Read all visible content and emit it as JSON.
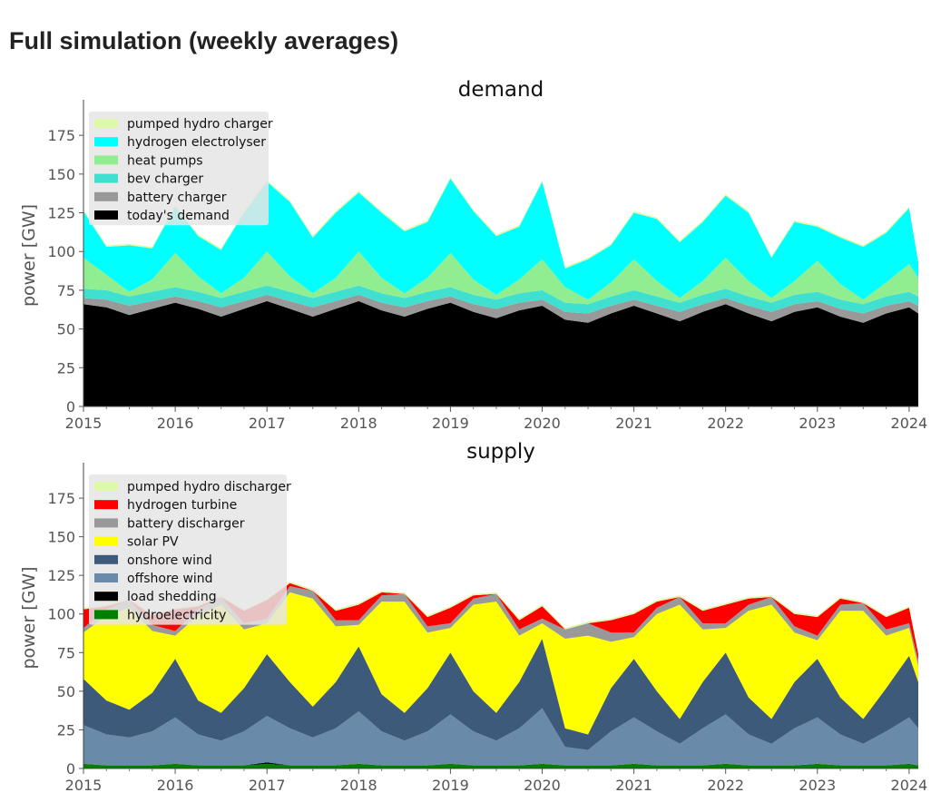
{
  "page": {
    "title": "Full simulation (weekly averages)"
  },
  "chart_data": [
    {
      "id": "demand",
      "type": "area",
      "stacked": true,
      "title": "demand",
      "xlabel": "",
      "ylabel": "power [GW]",
      "xlim": [
        2015.0,
        2024.1
      ],
      "ylim": [
        0,
        195
      ],
      "grid": false,
      "legend_position": "top-left",
      "x_ticks": [
        "2015",
        "2016",
        "2017",
        "2018",
        "2019",
        "2020",
        "2021",
        "2022",
        "2023",
        "2024"
      ],
      "y_ticks": [
        "0",
        "25",
        "50",
        "75",
        "100",
        "125",
        "150",
        "175"
      ],
      "x": [
        2015.0,
        2015.25,
        2015.5,
        2015.75,
        2016.0,
        2016.25,
        2016.5,
        2016.75,
        2017.0,
        2017.25,
        2017.5,
        2017.75,
        2018.0,
        2018.25,
        2018.5,
        2018.75,
        2019.0,
        2019.25,
        2019.5,
        2019.75,
        2020.0,
        2020.25,
        2020.5,
        2020.75,
        2021.0,
        2021.25,
        2021.5,
        2021.75,
        2022.0,
        2022.25,
        2022.5,
        2022.75,
        2023.0,
        2023.25,
        2023.5,
        2023.75,
        2024.0,
        2024.1
      ],
      "series": [
        {
          "name": "today's demand",
          "color": "#000000",
          "values": [
            66,
            64,
            59,
            63,
            67,
            63,
            58,
            63,
            68,
            63,
            58,
            63,
            68,
            62,
            58,
            63,
            67,
            61,
            57,
            62,
            65,
            56,
            54,
            60,
            65,
            60,
            55,
            61,
            66,
            60,
            55,
            61,
            64,
            58,
            54,
            60,
            64,
            60
          ]
        },
        {
          "name": "battery charger",
          "color": "#999999",
          "values": [
            4,
            5,
            6,
            5,
            4,
            5,
            6,
            5,
            4,
            5,
            6,
            5,
            4,
            5,
            6,
            5,
            4,
            5,
            6,
            5,
            4,
            5,
            6,
            5,
            4,
            5,
            6,
            5,
            4,
            5,
            6,
            5,
            4,
            5,
            6,
            5,
            4,
            5
          ]
        },
        {
          "name": "bev charger",
          "color": "#40e0d0",
          "values": [
            6,
            6,
            6,
            6,
            6,
            6,
            6,
            6,
            6,
            6,
            6,
            6,
            6,
            6,
            6,
            6,
            6,
            6,
            6,
            6,
            6,
            6,
            6,
            6,
            6,
            6,
            6,
            6,
            6,
            6,
            6,
            6,
            6,
            6,
            6,
            6,
            6,
            6
          ]
        },
        {
          "name": "heat pumps",
          "color": "#90ee90",
          "values": [
            20,
            10,
            3,
            8,
            22,
            10,
            3,
            9,
            22,
            10,
            3,
            9,
            22,
            10,
            3,
            9,
            22,
            10,
            3,
            9,
            20,
            10,
            3,
            9,
            20,
            10,
            3,
            9,
            20,
            10,
            3,
            9,
            20,
            10,
            3,
            9,
            18,
            12
          ]
        },
        {
          "name": "hydrogen electrolyser",
          "color": "#00ffff",
          "values": [
            30,
            18,
            30,
            20,
            30,
            26,
            28,
            42,
            45,
            48,
            36,
            42,
            38,
            42,
            40,
            36,
            48,
            44,
            38,
            34,
            50,
            12,
            26,
            24,
            30,
            40,
            36,
            38,
            40,
            44,
            26,
            38,
            22,
            30,
            34,
            32,
            36,
            10
          ]
        },
        {
          "name": "pumped hydro charger",
          "color": "#ddf8a8",
          "values": [
            1,
            1,
            1,
            1,
            1,
            1,
            1,
            1,
            1,
            1,
            1,
            1,
            1,
            1,
            1,
            1,
            1,
            1,
            1,
            1,
            1,
            1,
            1,
            1,
            1,
            1,
            1,
            1,
            1,
            1,
            1,
            1,
            1,
            1,
            1,
            1,
            1,
            1
          ]
        }
      ]
    },
    {
      "id": "supply",
      "type": "area",
      "stacked": true,
      "title": "supply",
      "xlabel": "",
      "ylabel": "power [GW]",
      "xlim": [
        2015.0,
        2024.1
      ],
      "ylim": [
        0,
        195
      ],
      "grid": false,
      "legend_position": "top-left",
      "x_ticks": [
        "2015",
        "2016",
        "2017",
        "2018",
        "2019",
        "2020",
        "2021",
        "2022",
        "2023",
        "2024"
      ],
      "y_ticks": [
        "0",
        "25",
        "50",
        "75",
        "100",
        "125",
        "150",
        "175"
      ],
      "x": [
        2015.0,
        2015.25,
        2015.5,
        2015.75,
        2016.0,
        2016.25,
        2016.5,
        2016.75,
        2017.0,
        2017.25,
        2017.5,
        2017.75,
        2018.0,
        2018.25,
        2018.5,
        2018.75,
        2019.0,
        2019.25,
        2019.5,
        2019.75,
        2020.0,
        2020.25,
        2020.5,
        2020.75,
        2021.0,
        2021.25,
        2021.5,
        2021.75,
        2022.0,
        2022.25,
        2022.5,
        2022.75,
        2023.0,
        2023.25,
        2023.5,
        2023.75,
        2024.0,
        2024.1
      ],
      "series": [
        {
          "name": "hydroelectricity",
          "color": "#008000",
          "values": [
            3,
            2,
            2,
            2,
            3,
            2,
            2,
            2,
            3,
            2,
            2,
            2,
            3,
            2,
            2,
            2,
            3,
            2,
            2,
            2,
            3,
            2,
            2,
            2,
            3,
            2,
            2,
            2,
            3,
            2,
            2,
            2,
            3,
            2,
            2,
            2,
            3,
            2
          ]
        },
        {
          "name": "load shedding",
          "color": "#000000",
          "values": [
            0,
            0,
            0,
            0,
            0,
            0,
            0,
            0,
            1,
            0,
            0,
            0,
            0,
            0,
            0,
            0,
            0,
            0,
            0,
            0,
            0,
            0,
            0,
            0,
            0,
            0,
            0,
            0,
            0,
            0,
            0,
            0,
            0,
            0,
            0,
            0,
            0,
            0
          ]
        },
        {
          "name": "offshore wind",
          "color": "#6a8aaa",
          "values": [
            25,
            20,
            18,
            22,
            30,
            20,
            16,
            22,
            30,
            24,
            18,
            24,
            34,
            22,
            16,
            22,
            32,
            22,
            16,
            24,
            36,
            12,
            10,
            22,
            30,
            22,
            14,
            24,
            32,
            20,
            14,
            24,
            30,
            20,
            14,
            22,
            30,
            24
          ]
        },
        {
          "name": "onshore wind",
          "color": "#3d5a7a",
          "values": [
            30,
            22,
            18,
            25,
            38,
            22,
            18,
            28,
            40,
            30,
            20,
            30,
            42,
            24,
            18,
            28,
            40,
            26,
            18,
            30,
            45,
            12,
            10,
            28,
            38,
            26,
            16,
            30,
            40,
            24,
            16,
            30,
            38,
            24,
            16,
            28,
            40,
            30
          ]
        },
        {
          "name": "solar PV",
          "color": "#ffff00",
          "values": [
            30,
            55,
            66,
            40,
            15,
            55,
            70,
            38,
            20,
            58,
            70,
            36,
            14,
            60,
            72,
            36,
            16,
            56,
            72,
            30,
            10,
            58,
            64,
            30,
            14,
            50,
            74,
            34,
            16,
            56,
            74,
            32,
            12,
            56,
            70,
            34,
            18,
            10
          ]
        },
        {
          "name": "battery discharger",
          "color": "#999999",
          "values": [
            3,
            4,
            5,
            4,
            3,
            4,
            5,
            4,
            3,
            4,
            5,
            4,
            3,
            4,
            5,
            4,
            3,
            4,
            5,
            4,
            3,
            6,
            8,
            6,
            3,
            4,
            5,
            4,
            3,
            4,
            5,
            4,
            3,
            4,
            5,
            4,
            3,
            4
          ]
        },
        {
          "name": "hydrogen turbine",
          "color": "#ff0000",
          "values": [
            12,
            2,
            0,
            6,
            14,
            2,
            0,
            8,
            12,
            2,
            0,
            6,
            10,
            2,
            0,
            6,
            10,
            2,
            0,
            6,
            8,
            0,
            0,
            8,
            12,
            4,
            0,
            8,
            12,
            4,
            0,
            8,
            12,
            4,
            0,
            8,
            10,
            4
          ]
        },
        {
          "name": "pumped hydro discharger",
          "color": "#ddf8a8",
          "values": [
            1,
            1,
            1,
            1,
            1,
            1,
            1,
            1,
            1,
            1,
            1,
            1,
            1,
            1,
            1,
            1,
            1,
            1,
            1,
            1,
            1,
            1,
            1,
            1,
            1,
            1,
            1,
            1,
            1,
            1,
            1,
            1,
            1,
            1,
            1,
            1,
            1,
            1
          ]
        }
      ]
    }
  ]
}
